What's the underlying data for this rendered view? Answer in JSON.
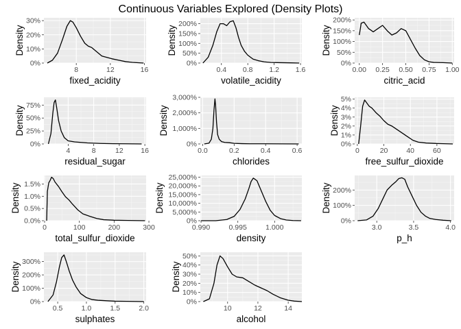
{
  "title": "Continuous Variables Explored (Density Plots)",
  "colors": {
    "panel_bg": "#EBEBEB",
    "grid_major": "#FFFFFF",
    "grid_minor": "#F5F5F5",
    "line": "#000000",
    "tick_text": "#4D4D4D",
    "label_text": "#000000"
  },
  "chart_data": [
    {
      "type": "line",
      "xlabel": "fixed_acidity",
      "ylabel": "Density",
      "xlim": [
        4.2,
        16.2
      ],
      "ylim": [
        0,
        0.32
      ],
      "xticks": [
        8,
        12,
        16
      ],
      "xtick_labels": [
        "8",
        "12",
        "16"
      ],
      "yticks": [
        0,
        0.1,
        0.2,
        0.3
      ],
      "ytick_labels": [
        "0%",
        "10%",
        "20%",
        "30%"
      ],
      "x": [
        4.6,
        5.2,
        5.8,
        6.4,
        6.9,
        7.3,
        7.6,
        8.0,
        8.5,
        9.0,
        9.4,
        9.8,
        10.4,
        11.0,
        11.6,
        12.2,
        13.0,
        13.8,
        14.6,
        15.4,
        15.9
      ],
      "y": [
        0.0,
        0.02,
        0.07,
        0.17,
        0.26,
        0.3,
        0.29,
        0.25,
        0.19,
        0.14,
        0.12,
        0.11,
        0.08,
        0.05,
        0.04,
        0.03,
        0.02,
        0.01,
        0.005,
        0.002,
        0.0
      ]
    },
    {
      "type": "line",
      "xlabel": "volatile_acidity",
      "ylabel": "Density",
      "xlim": [
        0.08,
        1.62
      ],
      "ylim": [
        0,
        2.3
      ],
      "xticks": [
        0.4,
        0.8,
        1.2,
        1.6
      ],
      "xtick_labels": [
        "0.4",
        "0.8",
        "1.2",
        "1.6"
      ],
      "yticks": [
        0,
        0.5,
        1.0,
        1.5,
        2.0
      ],
      "ytick_labels": [
        "0%",
        "50%",
        "100%",
        "150%",
        "200%"
      ],
      "x": [
        0.12,
        0.2,
        0.27,
        0.33,
        0.38,
        0.43,
        0.48,
        0.53,
        0.58,
        0.62,
        0.66,
        0.7,
        0.75,
        0.8,
        0.88,
        0.96,
        1.05,
        1.15,
        1.3,
        1.45,
        1.58
      ],
      "y": [
        0.0,
        0.3,
        0.9,
        1.6,
        2.0,
        2.0,
        1.9,
        2.1,
        2.15,
        1.8,
        1.3,
        0.9,
        0.6,
        0.4,
        0.2,
        0.12,
        0.06,
        0.03,
        0.02,
        0.01,
        0.0
      ]
    },
    {
      "type": "line",
      "xlabel": "citric_acid",
      "ylabel": "Density",
      "xlim": [
        -0.05,
        1.02
      ],
      "ylim": [
        0,
        2.1
      ],
      "xticks": [
        0.0,
        0.25,
        0.5,
        0.75,
        1.0
      ],
      "xtick_labels": [
        "0.00",
        "0.25",
        "0.50",
        "0.75",
        "1.00"
      ],
      "yticks": [
        0,
        0.5,
        1.0,
        1.5,
        2.0
      ],
      "ytick_labels": [
        "0%",
        "50%",
        "100%",
        "150%",
        "200%"
      ],
      "x": [
        0.0,
        0.02,
        0.05,
        0.1,
        0.15,
        0.2,
        0.25,
        0.3,
        0.35,
        0.4,
        0.45,
        0.5,
        0.55,
        0.6,
        0.65,
        0.7,
        0.75,
        0.8,
        0.9,
        1.0
      ],
      "y": [
        1.3,
        1.85,
        1.9,
        1.6,
        1.45,
        1.6,
        1.75,
        1.5,
        1.3,
        1.4,
        1.6,
        1.5,
        1.1,
        0.7,
        0.35,
        0.15,
        0.06,
        0.03,
        0.02,
        0.0
      ]
    },
    {
      "type": "line",
      "xlabel": "residual_sugar",
      "ylabel": "Density",
      "xlim": [
        0.2,
        16.2
      ],
      "ylim": [
        0,
        0.9
      ],
      "xticks": [
        4,
        8,
        12,
        16
      ],
      "xtick_labels": [
        "4",
        "8",
        "12",
        "16"
      ],
      "yticks": [
        0,
        0.25,
        0.5,
        0.75
      ],
      "ytick_labels": [
        "0%",
        "25%",
        "50%",
        "75%"
      ],
      "x": [
        0.9,
        1.3,
        1.6,
        1.8,
        2.0,
        2.2,
        2.5,
        2.9,
        3.4,
        4.0,
        5.0,
        6.0,
        7.0,
        9.0,
        11.0,
        13.0,
        15.5
      ],
      "y": [
        0.0,
        0.2,
        0.6,
        0.8,
        0.85,
        0.7,
        0.45,
        0.25,
        0.12,
        0.06,
        0.04,
        0.03,
        0.02,
        0.01,
        0.005,
        0.003,
        0.0
      ]
    },
    {
      "type": "line",
      "xlabel": "chlorides",
      "ylabel": "Density",
      "xlim": [
        -0.015,
        0.63
      ],
      "ylim": [
        0,
        30
      ],
      "xticks": [
        0.0,
        0.2,
        0.4,
        0.6
      ],
      "xtick_labels": [
        "0.0",
        "0.2",
        "0.4",
        "0.6"
      ],
      "yticks": [
        0,
        10,
        20,
        30
      ],
      "ytick_labels": [
        "0%",
        "1,000%",
        "2,000%",
        "3,000%"
      ],
      "x": [
        0.01,
        0.04,
        0.055,
        0.065,
        0.072,
        0.078,
        0.082,
        0.088,
        0.095,
        0.105,
        0.12,
        0.14,
        0.17,
        0.2,
        0.25,
        0.3,
        0.4,
        0.5,
        0.61
      ],
      "y": [
        0.0,
        0.5,
        3.0,
        10.0,
        22.0,
        29.0,
        25.0,
        14.0,
        6.0,
        3.0,
        1.5,
        1.0,
        0.8,
        0.4,
        0.2,
        0.1,
        0.1,
        0.05,
        0.0
      ]
    },
    {
      "type": "line",
      "xlabel": "free_sulfur_dioxide",
      "ylabel": "Density",
      "xlim": [
        -2,
        73
      ],
      "ylim": [
        0,
        0.052
      ],
      "xticks": [
        0,
        20,
        40,
        60
      ],
      "xtick_labels": [
        "0",
        "20",
        "40",
        "60"
      ],
      "yticks": [
        0,
        0.01,
        0.02,
        0.03,
        0.04,
        0.05
      ],
      "ytick_labels": [
        "0%",
        "1%",
        "2%",
        "3%",
        "4%",
        "5%"
      ],
      "x": [
        1,
        2.5,
        4,
        5.5,
        7,
        9,
        11,
        14,
        17,
        20,
        23,
        26,
        30,
        34,
        38,
        42,
        46,
        52,
        60,
        72
      ],
      "y": [
        0.0,
        0.02,
        0.042,
        0.049,
        0.046,
        0.042,
        0.04,
        0.035,
        0.031,
        0.026,
        0.022,
        0.02,
        0.016,
        0.012,
        0.008,
        0.004,
        0.002,
        0.001,
        0.0005,
        0.0
      ]
    },
    {
      "type": "line",
      "xlabel": "total_sulfur_dioxide",
      "ylabel": "Density",
      "xlim": [
        -2,
        292
      ],
      "ylim": [
        0,
        0.0185
      ],
      "xticks": [
        0,
        100,
        200,
        300
      ],
      "xtick_labels": [
        "0",
        "100",
        "200",
        "300"
      ],
      "yticks": [
        0,
        0.005,
        0.01,
        0.015
      ],
      "ytick_labels": [
        "0.0%",
        "0.5%",
        "1.0%",
        "1.5%"
      ],
      "x": [
        6,
        8,
        12,
        16,
        20,
        25,
        30,
        40,
        50,
        60,
        70,
        80,
        95,
        110,
        130,
        150,
        170,
        200,
        240,
        289
      ],
      "y": [
        0.0,
        0.012,
        0.0155,
        0.0165,
        0.0178,
        0.0172,
        0.0158,
        0.014,
        0.0118,
        0.0098,
        0.0085,
        0.0068,
        0.0045,
        0.0028,
        0.0018,
        0.0009,
        0.0004,
        0.0002,
        0.0001,
        0.0
      ]
    },
    {
      "type": "line",
      "xlabel": "density",
      "ylabel": "Density",
      "xlim": [
        0.9899,
        1.0037
      ],
      "ylim": [
        0,
        26000
      ],
      "xticks": [
        0.99,
        0.995,
        1.0
      ],
      "xtick_labels": [
        "0.990",
        "0.995",
        "1.000"
      ],
      "yticks": [
        0,
        5000,
        10000,
        15000,
        20000,
        25000
      ],
      "ytick_labels": [
        "0%",
        "5,000%",
        "10,000%",
        "15,000%",
        "20,000%",
        "25,000%"
      ],
      "x": [
        0.99,
        0.992,
        0.9935,
        0.9945,
        0.9953,
        0.996,
        0.9965,
        0.9968,
        0.9971,
        0.9976,
        0.9982,
        0.9988,
        0.9994,
        1.0,
        1.0008,
        1.0016,
        1.0025,
        1.0036
      ],
      "y": [
        0,
        0,
        700,
        2500,
        6500,
        12500,
        18500,
        22500,
        24500,
        23000,
        17000,
        11000,
        6000,
        3000,
        1200,
        400,
        100,
        0
      ]
    },
    {
      "type": "line",
      "xlabel": "p_h",
      "ylabel": "Density",
      "xlim": [
        2.7,
        4.05
      ],
      "ylim": [
        0,
        2.95
      ],
      "xticks": [
        3.0,
        3.5,
        4.0
      ],
      "xtick_labels": [
        "3.0",
        "3.5",
        "4.0"
      ],
      "yticks": [
        0,
        1,
        2
      ],
      "ytick_labels": [
        "0%",
        "100%",
        "200%"
      ],
      "x": [
        2.74,
        2.86,
        2.95,
        3.02,
        3.08,
        3.14,
        3.2,
        3.26,
        3.3,
        3.34,
        3.38,
        3.42,
        3.48,
        3.54,
        3.6,
        3.66,
        3.72,
        3.8,
        3.9,
        4.01
      ],
      "y": [
        0,
        0.05,
        0.3,
        0.8,
        1.4,
        2.0,
        2.3,
        2.55,
        2.75,
        2.8,
        2.7,
        2.2,
        1.6,
        1.0,
        0.55,
        0.3,
        0.15,
        0.08,
        0.03,
        0
      ]
    },
    {
      "type": "line",
      "xlabel": "sulphates",
      "ylabel": "Density",
      "xlim": [
        0.26,
        2.04
      ],
      "ylim": [
        0,
        3.7
      ],
      "xticks": [
        0.5,
        1.0,
        1.5,
        2.0
      ],
      "xtick_labels": [
        "0.5",
        "1.0",
        "1.5",
        "2.0"
      ],
      "yticks": [
        0,
        1,
        2,
        3
      ],
      "ytick_labels": [
        "0%",
        "100%",
        "200%",
        "300%"
      ],
      "x": [
        0.33,
        0.42,
        0.48,
        0.53,
        0.57,
        0.61,
        0.65,
        0.7,
        0.76,
        0.82,
        0.9,
        1.0,
        1.1,
        1.2,
        1.35,
        1.5,
        1.7,
        2.0
      ],
      "y": [
        0,
        0.5,
        1.5,
        2.6,
        3.3,
        3.5,
        3.0,
        2.3,
        1.6,
        1.1,
        0.6,
        0.3,
        0.15,
        0.1,
        0.06,
        0.03,
        0.02,
        0
      ]
    },
    {
      "type": "line",
      "xlabel": "alcohol",
      "ylabel": "Density",
      "xlim": [
        8.2,
        14.9
      ],
      "ylim": [
        0,
        0.54
      ],
      "xticks": [
        10,
        12,
        14
      ],
      "xtick_labels": [
        "10",
        "12",
        "14"
      ],
      "yticks": [
        0,
        0.1,
        0.2,
        0.3,
        0.4,
        0.5
      ],
      "ytick_labels": [
        "0%",
        "10%",
        "20%",
        "30%",
        "40%",
        "50%"
      ],
      "x": [
        8.4,
        8.8,
        9.1,
        9.3,
        9.5,
        9.7,
        10.0,
        10.3,
        10.6,
        11.0,
        11.4,
        11.8,
        12.2,
        12.6,
        13.0,
        13.5,
        14.0,
        14.4,
        14.9
      ],
      "y": [
        0,
        0.03,
        0.2,
        0.4,
        0.5,
        0.47,
        0.38,
        0.3,
        0.27,
        0.26,
        0.22,
        0.18,
        0.15,
        0.12,
        0.08,
        0.04,
        0.015,
        0.005,
        0
      ]
    }
  ]
}
